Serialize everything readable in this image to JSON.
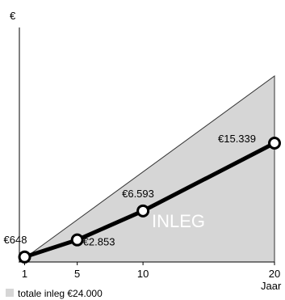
{
  "chart_data": {
    "type": "line",
    "y_unit_label": "€",
    "x_unit_label": "Jaar",
    "x_ticks": [
      1,
      5,
      10,
      20
    ],
    "xlim": [
      0.6,
      20
    ],
    "ylim": [
      0,
      24000
    ],
    "inleg_area": {
      "label": "INLEG",
      "points": [
        {
          "x": 0.6,
          "y": 0
        },
        {
          "x": 20,
          "y": 24000
        }
      ],
      "color": "#d6d6d6"
    },
    "series": [
      {
        "values": [
          {
            "x": 1,
            "y": 648,
            "label": "€648"
          },
          {
            "x": 5,
            "y": 2853,
            "label": "€2.853"
          },
          {
            "x": 10,
            "y": 6593,
            "label": "€6.593"
          },
          {
            "x": 20,
            "y": 15339,
            "label": "€15.339"
          }
        ],
        "color": "#000000"
      }
    ],
    "legend": {
      "text": "totale inleg €24.000",
      "swatch_color": "#d6d6d6",
      "placement": "bottom-left"
    },
    "grid": false
  }
}
